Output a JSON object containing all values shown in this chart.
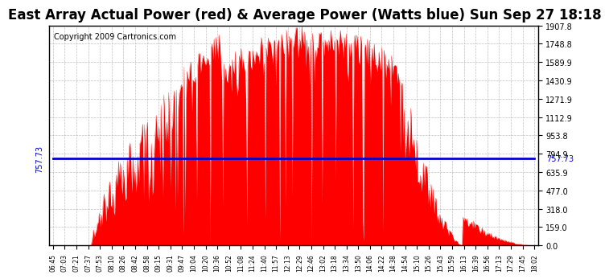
{
  "title": "East Array Actual Power (red) & Average Power (Watts blue) Sun Sep 27 18:18",
  "copyright": "Copyright 2009 Cartronics.com",
  "avg_power": 757.73,
  "ymax": 1907.8,
  "ymin": 0.0,
  "ytick_labels": [
    "0.0",
    "159.0",
    "318.0",
    "477.0",
    "635.9",
    "794.9",
    "953.8",
    "1112.9",
    "1271.9",
    "1430.9",
    "1589.9",
    "1748.8",
    "1907.8"
  ],
  "ytick_vals": [
    0.0,
    159.0,
    318.0,
    477.0,
    635.9,
    794.9,
    953.8,
    1112.9,
    1271.9,
    1430.9,
    1589.9,
    1748.8,
    1907.8
  ],
  "xtick_labels": [
    "06:45",
    "07:03",
    "07:21",
    "07:37",
    "07:53",
    "08:10",
    "08:26",
    "08:42",
    "08:58",
    "09:15",
    "09:31",
    "09:47",
    "10:04",
    "10:20",
    "10:36",
    "10:52",
    "11:08",
    "11:24",
    "11:40",
    "11:57",
    "12:13",
    "12:29",
    "12:46",
    "13:02",
    "13:18",
    "13:34",
    "13:50",
    "14:06",
    "14:22",
    "14:38",
    "14:54",
    "15:10",
    "15:26",
    "15:43",
    "15:59",
    "16:13",
    "16:39",
    "16:56",
    "17:13",
    "17:29",
    "17:45",
    "18:02"
  ],
  "title_fontsize": 12,
  "copyright_fontsize": 7,
  "avg_label": "757.73",
  "bar_color": "#ff0000",
  "line_color": "#0000cc",
  "bg_color": "#ffffff",
  "grid_color": "#b0b0b0",
  "text_color": "#000000"
}
